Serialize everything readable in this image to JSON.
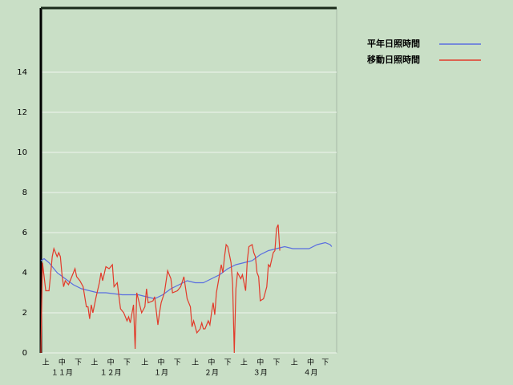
{
  "chart_data": {
    "type": "line",
    "xlim": [
      0,
      182
    ],
    "ylim": [
      0,
      17.2
    ],
    "yticks": [
      0,
      2,
      4,
      6,
      8,
      10,
      12,
      14
    ],
    "xticks": [
      {
        "value": 3,
        "label": "上"
      },
      {
        "value": 13,
        "label": "中"
      },
      {
        "value": 23,
        "label": "下"
      },
      {
        "value": 33,
        "label": "上"
      },
      {
        "value": 43,
        "label": "中"
      },
      {
        "value": 53,
        "label": "下"
      },
      {
        "value": 64,
        "label": "上"
      },
      {
        "value": 74,
        "label": "中"
      },
      {
        "value": 84,
        "label": "下"
      },
      {
        "value": 95,
        "label": "上"
      },
      {
        "value": 105,
        "label": "中"
      },
      {
        "value": 115,
        "label": "下"
      },
      {
        "value": 125,
        "label": "上"
      },
      {
        "value": 135,
        "label": "中"
      },
      {
        "value": 145,
        "label": "下"
      },
      {
        "value": 156,
        "label": "上"
      },
      {
        "value": 166,
        "label": "中"
      },
      {
        "value": 175,
        "label": "下"
      }
    ],
    "month_ticks": [
      {
        "value": 13,
        "label": "１１月"
      },
      {
        "value": 43,
        "label": "１２月"
      },
      {
        "value": 74,
        "label": "１月"
      },
      {
        "value": 105,
        "label": "２月"
      },
      {
        "value": 135,
        "label": "３月"
      },
      {
        "value": 166,
        "label": "４月"
      }
    ],
    "grid": true,
    "series": [
      {
        "name": "平年日照時間",
        "color": "#5a6ee0",
        "x": [
          0,
          2,
          5,
          10,
          15,
          20,
          25,
          30,
          35,
          40,
          50,
          60,
          65,
          70,
          75,
          80,
          85,
          90,
          95,
          100,
          105,
          110,
          115,
          120,
          125,
          130,
          135,
          140,
          145,
          150,
          155,
          165,
          170,
          175,
          178,
          179
        ],
        "values": [
          4.6,
          4.7,
          4.5,
          4.0,
          3.7,
          3.4,
          3.2,
          3.1,
          3.0,
          3.0,
          2.9,
          2.9,
          2.8,
          2.7,
          2.9,
          3.2,
          3.4,
          3.6,
          3.5,
          3.5,
          3.7,
          3.9,
          4.2,
          4.4,
          4.5,
          4.6,
          4.9,
          5.1,
          5.2,
          5.3,
          5.2,
          5.2,
          5.4,
          5.5,
          5.4,
          5.3
        ]
      },
      {
        "name": "移動日照時間",
        "color": "#e23a2a",
        "x": [
          0,
          1,
          3,
          5,
          7,
          8,
          10,
          11,
          12,
          13,
          14,
          15,
          17,
          19,
          21,
          22,
          24,
          26,
          28,
          29,
          30,
          31,
          32,
          34,
          36,
          37,
          38,
          40,
          42,
          44,
          45,
          47,
          49,
          51,
          53,
          54,
          55,
          57,
          58,
          59,
          62,
          64,
          65,
          66,
          69,
          70,
          72,
          73,
          74,
          76,
          78,
          80,
          81,
          84,
          86,
          88,
          90,
          92,
          93,
          94,
          96,
          98,
          99,
          100,
          101,
          103,
          104,
          105,
          106,
          107,
          108,
          111,
          112,
          113,
          114,
          115,
          117,
          118,
          119,
          120,
          121,
          123,
          124,
          126,
          127,
          128,
          130,
          131,
          132,
          133,
          134,
          135,
          137,
          139,
          140,
          141,
          143,
          144,
          145,
          146,
          147
        ],
        "values": [
          0,
          4.5,
          3.1,
          3.1,
          4.8,
          5.2,
          4.8,
          5.0,
          4.8,
          3.9,
          3.3,
          3.6,
          3.4,
          3.8,
          4.2,
          3.8,
          3.6,
          3.3,
          2.3,
          2.3,
          1.7,
          2.4,
          2.0,
          2.8,
          3.5,
          4.0,
          3.6,
          4.3,
          4.2,
          4.4,
          3.3,
          3.5,
          2.2,
          2.0,
          1.6,
          1.8,
          1.5,
          2.4,
          0.2,
          3.0,
          2.0,
          2.3,
          3.2,
          2.5,
          2.6,
          2.8,
          1.4,
          2.0,
          2.5,
          3.0,
          4.1,
          3.7,
          3.0,
          3.1,
          3.3,
          3.8,
          2.7,
          2.3,
          1.3,
          1.6,
          1.0,
          1.2,
          1.5,
          1.2,
          1.2,
          1.6,
          1.4,
          2.0,
          2.5,
          1.9,
          3.0,
          4.4,
          4.0,
          4.8,
          5.4,
          5.3,
          4.5,
          3.4,
          0.0,
          3.2,
          4.0,
          3.7,
          3.9,
          3.1,
          4.6,
          5.3,
          5.4,
          5.0,
          4.8,
          4.0,
          3.8,
          2.6,
          2.7,
          3.3,
          4.4,
          4.3,
          5.0,
          5.1,
          6.2,
          6.4,
          5.1
        ]
      }
    ]
  }
}
